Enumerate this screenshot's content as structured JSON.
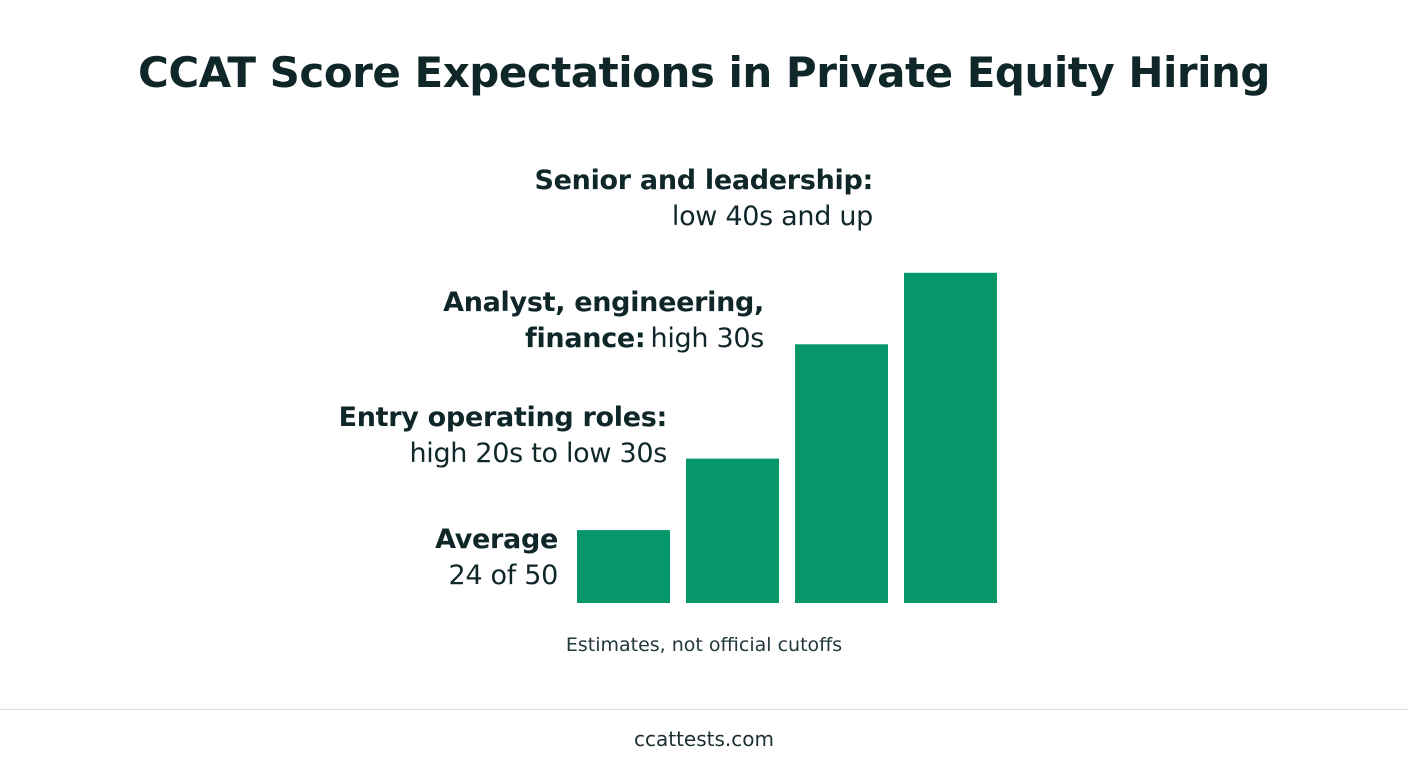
{
  "title": "CCAT Score Expectations in Private Equity Hiring",
  "chart_data": {
    "type": "bar",
    "title": "CCAT Score Expectations in Private Equity Hiring",
    "categories": [
      "Average",
      "Entry operating roles",
      "Analyst, engineering, finance",
      "Senior and leadership"
    ],
    "values": [
      24,
      29,
      37,
      42
    ],
    "ylim": [
      0,
      50
    ],
    "grid": false,
    "legend": "none",
    "bar_color": "#059669",
    "labels": [
      {
        "bold": "Average",
        "regular": "24 of 50"
      },
      {
        "bold": "Entry operating roles:",
        "regular": "high 20s to low 30s"
      },
      {
        "bold_line1": "Analyst, engineering,",
        "bold_line2": "finance:",
        "regular": "high 30s"
      },
      {
        "bold": "Senior and leadership:",
        "regular": "low 40s and up"
      }
    ],
    "annotation": "Estimates, not official cutoffs"
  },
  "footer": {
    "site": "ccattests.com"
  }
}
